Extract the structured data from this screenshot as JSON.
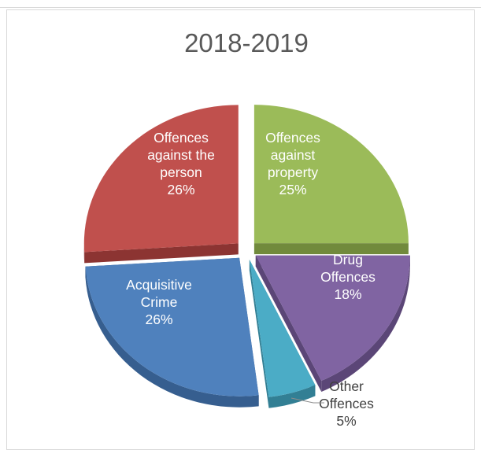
{
  "chart_data": {
    "type": "pie",
    "title": "2018-2019",
    "style": "3d-exploded",
    "slices": [
      {
        "name": "Offences against property",
        "label_lines": [
          "Offences",
          "against",
          "property"
        ],
        "percent_label": "25%",
        "value": 25,
        "color": "#9bbb59",
        "side": "#718a3c"
      },
      {
        "name": "Drug Offences",
        "label_lines": [
          "Drug",
          "Offences"
        ],
        "percent_label": "18%",
        "value": 18,
        "color": "#8064a2",
        "side": "#5b4677"
      },
      {
        "name": "Other Offences",
        "label_lines": [
          "Other",
          "Offences"
        ],
        "percent_label": "5%",
        "value": 5,
        "color": "#4bacc6",
        "side": "#327f94"
      },
      {
        "name": "Acquisitive Crime",
        "label_lines": [
          "Acquisitive",
          "Crime"
        ],
        "percent_label": "26%",
        "value": 26,
        "color": "#4f81bd",
        "side": "#365e8f"
      },
      {
        "name": "Offences against the person",
        "label_lines": [
          "Offences",
          "against the",
          "person"
        ],
        "percent_label": "26%",
        "value": 26,
        "color": "#c0504d",
        "side": "#8c3432"
      }
    ]
  }
}
